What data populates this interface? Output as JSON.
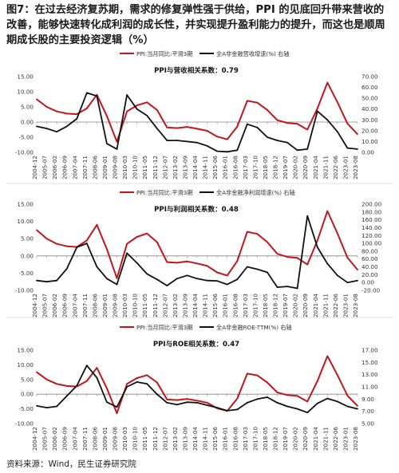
{
  "figure": {
    "title": "图7：在过去经济复苏期，需求的修复弹性强于供给，PPI 的见底回升带来营收的改善，能够快速转化成利润的成长性，并实现提升盈利能力的提升，而这也是顺周期成长股的主要投资逻辑（%）",
    "source": "资料来源：Wind，民生证券研究院"
  },
  "colors": {
    "ppi": "#c0161d",
    "metric": "#111111",
    "axis": "#888888"
  },
  "chart_data": [
    {
      "type": "line",
      "title": "PPI与营收相关系数：0.79",
      "x": [
        "2004-12",
        "2005-07",
        "2006-02",
        "2006-09",
        "2007-04",
        "2007-11",
        "2008-06",
        "2009-01",
        "2009-08",
        "2010-03",
        "2010-10",
        "2011-05",
        "2011-12",
        "2012-07",
        "2013-02",
        "2013-09",
        "2014-04",
        "2014-11",
        "2015-06",
        "2016-01",
        "2016-08",
        "2017-03",
        "2017-10",
        "2018-05",
        "2018-12",
        "2019-07",
        "2020-02",
        "2020-09",
        "2021-04",
        "2021-11",
        "2022-06",
        "2023-01",
        "2023-08"
      ],
      "ylim": [
        -10,
        15
      ],
      "y2lim": [
        0,
        70
      ],
      "yticks": [
        -10,
        -5,
        0,
        5,
        10,
        15
      ],
      "y2ticks": [
        0,
        10,
        20,
        30,
        40,
        50,
        60,
        70
      ],
      "yticklabels": [
        "-10.00",
        "-5.00",
        "0.00",
        "5.00",
        "10.00",
        "15.00"
      ],
      "y2ticklabels": [
        "0.00",
        "10.00",
        "20.00",
        "30.00",
        "40.00",
        "50.00",
        "60.00",
        "70.00"
      ],
      "series": [
        {
          "name": "PPI:当月同比:平滑3期",
          "axis": "left",
          "values": [
            7.5,
            5.0,
            3.5,
            2.8,
            2.6,
            4.5,
            9.0,
            2.0,
            -6.5,
            3.5,
            5.5,
            6.5,
            4.0,
            -1.8,
            -2.0,
            -1.6,
            -2.2,
            -2.9,
            -4.8,
            -5.7,
            -1.5,
            7.0,
            6.4,
            4.0,
            0.6,
            -0.3,
            -0.6,
            -2.5,
            4.5,
            13.0,
            6.5,
            -0.5,
            -4.0
          ]
        },
        {
          "name": "全A非金融营收增速(%) 右轴",
          "axis": "right",
          "values": [
            24.0,
            22.0,
            19.0,
            24.0,
            31.0,
            55.0,
            52.0,
            8.0,
            3.0,
            53.0,
            40.0,
            34.0,
            22.0,
            11.0,
            11.0,
            10.0,
            9.0,
            6.0,
            1.0,
            0.5,
            2.0,
            26.0,
            23.0,
            14.0,
            11.0,
            9.0,
            2.0,
            3.0,
            38.0,
            30.0,
            19.0,
            4.0,
            3.0
          ]
        }
      ]
    },
    {
      "type": "line",
      "title": "PPI与利润相关系数：0.48",
      "x": [
        "2004-12",
        "2005-07",
        "2006-02",
        "2006-09",
        "2007-04",
        "2007-11",
        "2008-06",
        "2009-01",
        "2009-08",
        "2010-03",
        "2010-10",
        "2011-05",
        "2011-12",
        "2012-07",
        "2013-02",
        "2013-09",
        "2014-04",
        "2014-11",
        "2015-06",
        "2016-01",
        "2016-08",
        "2017-03",
        "2017-10",
        "2018-05",
        "2018-12",
        "2019-07",
        "2020-02",
        "2020-09",
        "2021-04",
        "2021-11",
        "2022-06",
        "2023-01",
        "2023-08"
      ],
      "ylim": [
        -10,
        15
      ],
      "y2lim": [
        -20,
        200
      ],
      "yticks": [
        -10,
        -5,
        0,
        5,
        10,
        15
      ],
      "y2ticks": [
        -20,
        0,
        20,
        40,
        60,
        80,
        100,
        120,
        140,
        160,
        180,
        200
      ],
      "yticklabels": [
        "-10.00",
        "-5.00",
        "0.00",
        "5.00",
        "10.00",
        "15.00"
      ],
      "y2ticklabels": [
        "-20.00",
        "0.00",
        "20.00",
        "40.00",
        "60.00",
        "80.00",
        "100.00",
        "120.00",
        "140.00",
        "160.00",
        "180.00",
        "200.00"
      ],
      "series": [
        {
          "name": "PPI:当月同比:平滑3期",
          "axis": "left",
          "values": [
            7.5,
            5.0,
            3.5,
            2.8,
            2.6,
            4.5,
            9.0,
            2.0,
            -6.5,
            3.5,
            5.5,
            6.5,
            4.0,
            -1.8,
            -2.0,
            -1.6,
            -2.2,
            -2.9,
            -4.8,
            -5.7,
            -1.5,
            7.0,
            6.4,
            4.0,
            0.6,
            -0.3,
            -0.6,
            -2.5,
            4.5,
            13.0,
            6.5,
            -0.5,
            -4.0
          ]
        },
        {
          "name": "全A非金融净利润增速(%) 右轴",
          "axis": "right",
          "values": [
            5.0,
            2.0,
            5.0,
            35.0,
            90.0,
            100.0,
            40.0,
            10.0,
            -5.0,
            75.0,
            50.0,
            22.0,
            8.0,
            -8.0,
            10.0,
            18.0,
            10.0,
            5.0,
            4.0,
            -5.0,
            8.0,
            40.0,
            34.0,
            26.0,
            -12.0,
            -10.0,
            -15.0,
            170.0,
            90.0,
            48.0,
            18.0,
            0.0,
            5.0
          ]
        }
      ]
    },
    {
      "type": "line",
      "title": "PPI与ROE相关系数：0.47",
      "x": [
        "2004-12",
        "2005-07",
        "2006-02",
        "2006-09",
        "2007-04",
        "2007-11",
        "2008-06",
        "2009-01",
        "2009-08",
        "2010-03",
        "2010-10",
        "2011-05",
        "2011-12",
        "2012-07",
        "2013-02",
        "2013-09",
        "2014-04",
        "2014-11",
        "2015-06",
        "2016-01",
        "2016-08",
        "2017-03",
        "2017-10",
        "2018-05",
        "2018-12",
        "2019-07",
        "2020-02",
        "2020-09",
        "2021-04",
        "2021-11",
        "2022-06",
        "2023-01",
        "2023-08"
      ],
      "ylim": [
        -10,
        15
      ],
      "y2lim": [
        5,
        17
      ],
      "yticks": [
        -10,
        -5,
        0,
        5,
        10,
        15
      ],
      "y2ticks": [
        5,
        7,
        9,
        11,
        13,
        15,
        17
      ],
      "yticklabels": [
        "-10.00",
        "-5.00",
        "0.00",
        "5.00",
        "10.00",
        "15.00"
      ],
      "y2ticklabels": [
        "5.00",
        "7.00",
        "9.00",
        "11.00",
        "13.00",
        "15.00",
        "17.00"
      ],
      "series": [
        {
          "name": "PPI:当月同比:平滑3期",
          "axis": "left",
          "values": [
            7.5,
            5.0,
            3.5,
            2.8,
            2.6,
            4.5,
            9.0,
            2.0,
            -6.5,
            3.5,
            5.5,
            6.5,
            4.0,
            -1.8,
            -2.0,
            -1.6,
            -2.2,
            -2.9,
            -4.8,
            -5.7,
            -1.5,
            7.0,
            6.4,
            4.0,
            0.6,
            -0.3,
            -0.6,
            -2.5,
            4.5,
            13.0,
            6.5,
            -0.5,
            -4.0
          ]
        },
        {
          "name": "全A非金融ROE-TTM(%) 右轴",
          "axis": "right",
          "values": [
            7.9,
            7.6,
            7.8,
            9.5,
            11.2,
            14.5,
            12.5,
            8.5,
            7.7,
            11.0,
            11.8,
            11.5,
            9.8,
            8.4,
            8.1,
            8.5,
            8.4,
            8.0,
            7.6,
            7.1,
            7.3,
            8.4,
            9.0,
            9.3,
            8.4,
            7.8,
            7.4,
            6.8,
            8.3,
            9.1,
            8.6,
            7.8,
            7.4
          ]
        }
      ]
    }
  ]
}
